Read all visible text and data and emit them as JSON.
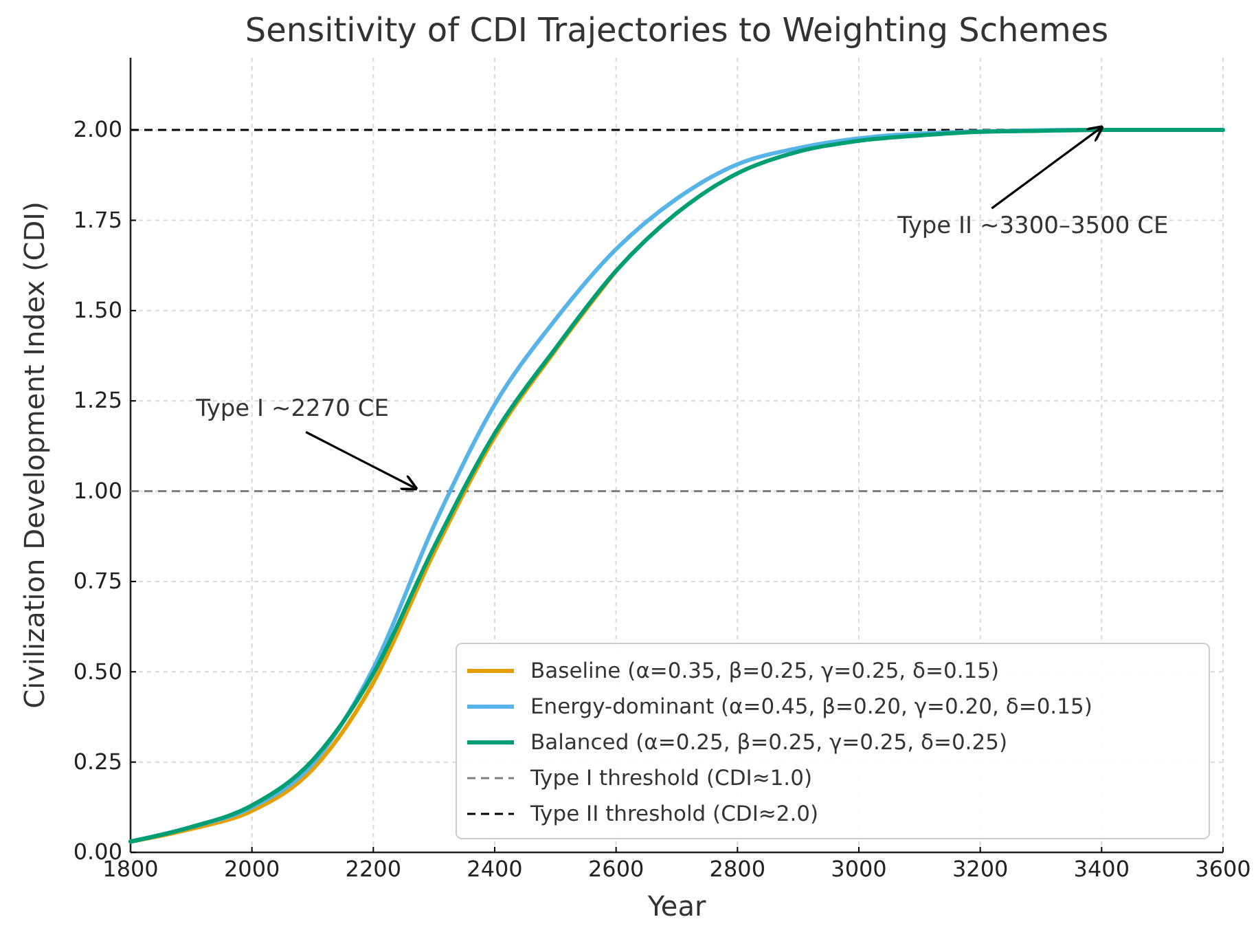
{
  "chart_data": {
    "type": "line",
    "title": "Sensitivity of CDI Trajectories to Weighting Schemes",
    "xlabel": "Year",
    "ylabel": "Civilization Development Index (CDI)",
    "x": [
      1800,
      1900,
      2000,
      2100,
      2200,
      2300,
      2400,
      2500,
      2600,
      2700,
      2800,
      2900,
      3000,
      3100,
      3200,
      3300,
      3400,
      3500,
      3600
    ],
    "series": [
      {
        "name": "Baseline (α=0.35, β=0.25, γ=0.25, δ=0.15)",
        "color": "#e69f00",
        "values": [
          0.03,
          0.065,
          0.115,
          0.23,
          0.47,
          0.83,
          1.15,
          1.39,
          1.61,
          null,
          null,
          null,
          null,
          null,
          null,
          null,
          null,
          null,
          null
        ]
      },
      {
        "name": "Energy-dominant (α=0.45, β=0.20, γ=0.20, δ=0.15)",
        "color": "#56b4e9",
        "values": [
          0.03,
          0.07,
          0.125,
          0.245,
          0.51,
          0.905,
          1.24,
          1.475,
          1.67,
          1.81,
          1.905,
          1.95,
          1.977,
          1.99,
          1.996,
          1.999,
          2.0,
          null,
          null
        ]
      },
      {
        "name": "Balanced (α=0.25, β=0.25, γ=0.25, δ=0.25)",
        "color": "#009e73",
        "values": [
          0.03,
          0.07,
          0.13,
          0.255,
          0.495,
          0.845,
          1.16,
          1.395,
          1.61,
          1.77,
          1.88,
          1.94,
          1.97,
          1.985,
          1.995,
          1.998,
          2.0,
          2.0,
          2.0
        ]
      }
    ],
    "ref_lines": [
      {
        "axis": "y",
        "value": 1.0,
        "label": "Type I threshold (CDI≈1.0)",
        "color": "#808080",
        "line_style": "dashed"
      },
      {
        "axis": "y",
        "value": 2.0,
        "label": "Type II threshold (CDI≈2.0)",
        "color": "#000000",
        "line_style": "dashed"
      }
    ],
    "annotations": [
      {
        "text": "Type I ~2270 CE",
        "x": 2270,
        "y": 1.0
      },
      {
        "text": "Type II ~3300–3500 CE",
        "x": 3400,
        "y": 2.0
      }
    ],
    "xlim": [
      1800,
      3600
    ],
    "xticks": [
      1800,
      2000,
      2200,
      2400,
      2600,
      2800,
      3000,
      3200,
      3400,
      3600
    ],
    "ylim": [
      0,
      2.2
    ],
    "yticks": [
      {
        "value": 0,
        "label": "0.00"
      },
      {
        "value": 0.25,
        "label": "0.25"
      },
      {
        "value": 0.5,
        "label": "0.50"
      },
      {
        "value": 0.75,
        "label": "0.75"
      },
      {
        "value": 1,
        "label": "1.00"
      },
      {
        "value": 1.25,
        "label": "1.25"
      },
      {
        "value": 1.5,
        "label": "1.50"
      },
      {
        "value": 1.75,
        "label": "1.75"
      },
      {
        "value": 2,
        "label": "2.00"
      }
    ],
    "grid": true,
    "legend": "bottom right",
    "marker": "none",
    "line_style": "solid"
  }
}
